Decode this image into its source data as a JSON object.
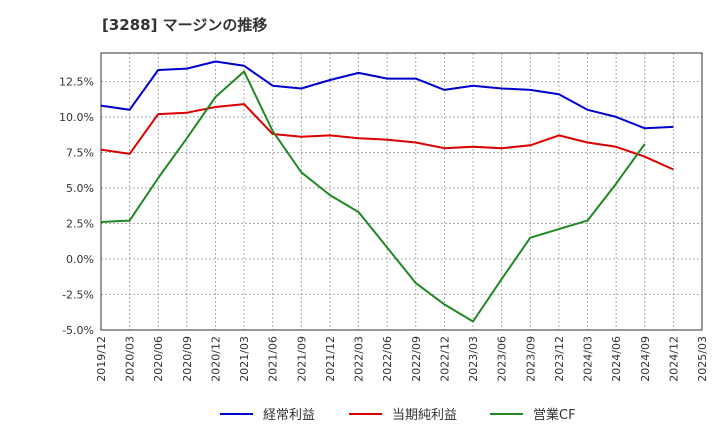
{
  "chart_data": {
    "type": "line",
    "title": "[3288]  マージンの推移",
    "x": [
      "2019/12",
      "2020/03",
      "2020/06",
      "2020/09",
      "2020/12",
      "2021/03",
      "2021/06",
      "2021/09",
      "2021/12",
      "2022/03",
      "2022/06",
      "2022/09",
      "2022/12",
      "2023/03",
      "2023/06",
      "2023/09",
      "2023/12",
      "2024/03",
      "2024/06",
      "2024/09",
      "2024/12",
      "2025/03"
    ],
    "xlim": [
      "2019/12",
      "2025/03"
    ],
    "ylim": [
      -5.0,
      14.5
    ],
    "yticks": [
      -5.0,
      -2.5,
      0.0,
      2.5,
      5.0,
      7.5,
      10.0,
      12.5
    ],
    "ytick_labels": [
      "-5.0%",
      "-2.5%",
      "0.0%",
      "2.5%",
      "5.0%",
      "7.5%",
      "10.0%",
      "12.5%"
    ],
    "grid": true,
    "legend_position": "bottom",
    "series": [
      {
        "name": "経常利益",
        "color": "#0000cc",
        "values": [
          10.8,
          10.5,
          13.3,
          13.4,
          13.9,
          13.6,
          12.2,
          12.0,
          12.6,
          13.1,
          12.7,
          12.7,
          11.9,
          12.2,
          12.0,
          11.9,
          11.6,
          10.5,
          10.0,
          9.2,
          9.3,
          null
        ]
      },
      {
        "name": "当期純利益",
        "color": "#dd0000",
        "values": [
          7.7,
          7.4,
          10.2,
          10.3,
          10.7,
          10.9,
          8.8,
          8.6,
          8.7,
          8.5,
          8.4,
          8.2,
          7.8,
          7.9,
          7.8,
          8.0,
          8.7,
          8.2,
          7.9,
          7.2,
          6.3,
          null
        ]
      },
      {
        "name": "営業CF",
        "color": "#228822",
        "values": [
          2.6,
          2.7,
          5.7,
          8.5,
          11.4,
          13.2,
          9.0,
          6.1,
          4.5,
          3.3,
          0.8,
          -1.7,
          -3.2,
          -4.4,
          -1.4,
          1.5,
          2.1,
          2.7,
          5.3,
          8.1,
          null,
          null
        ]
      }
    ]
  }
}
